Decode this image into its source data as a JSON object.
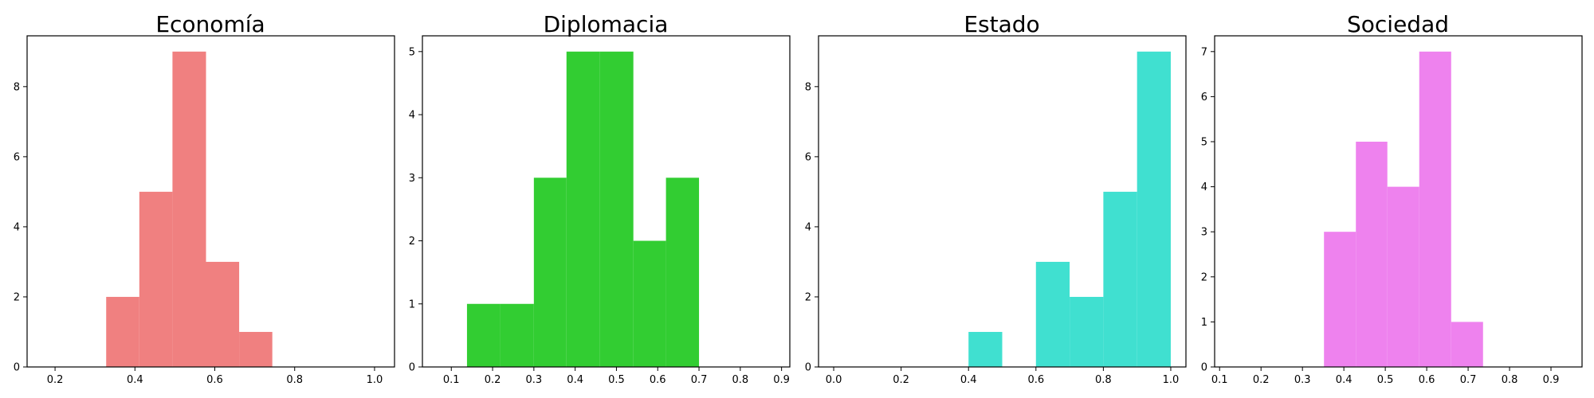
{
  "chart_data": [
    {
      "type": "bar",
      "subtype": "histogram",
      "title": "Economía",
      "color": "#f08080",
      "xlim": [
        0.13,
        1.05
      ],
      "ylim": [
        0,
        9.45
      ],
      "xticks": [
        0.2,
        0.4,
        0.6,
        0.8,
        1.0
      ],
      "xtick_labels": [
        "0.2",
        "0.4",
        "0.6",
        "0.8",
        "1.0"
      ],
      "yticks": [
        0,
        2,
        4,
        6,
        8
      ],
      "ytick_labels": [
        "0",
        "2",
        "4",
        "6",
        "8"
      ],
      "bins": [
        {
          "x0": 0.328,
          "x1": 0.411,
          "count": 2
        },
        {
          "x0": 0.411,
          "x1": 0.494,
          "count": 5
        },
        {
          "x0": 0.494,
          "x1": 0.578,
          "count": 9
        },
        {
          "x0": 0.578,
          "x1": 0.661,
          "count": 3
        },
        {
          "x0": 0.661,
          "x1": 0.744,
          "count": 1
        }
      ]
    },
    {
      "type": "bar",
      "subtype": "histogram",
      "title": "Diplomacia",
      "color": "#32cd32",
      "xlim": [
        0.03,
        0.92
      ],
      "ylim": [
        0,
        5.25
      ],
      "xticks": [
        0.1,
        0.2,
        0.3,
        0.4,
        0.5,
        0.6,
        0.7,
        0.8,
        0.9
      ],
      "xtick_labels": [
        "0.1",
        "0.2",
        "0.3",
        "0.4",
        "0.5",
        "0.6",
        "0.7",
        "0.8",
        "0.9"
      ],
      "yticks": [
        0,
        1,
        2,
        3,
        4,
        5
      ],
      "ytick_labels": [
        "0",
        "1",
        "2",
        "3",
        "4",
        "5"
      ],
      "bins": [
        {
          "x0": 0.138,
          "x1": 0.219,
          "count": 1
        },
        {
          "x0": 0.219,
          "x1": 0.3,
          "count": 1
        },
        {
          "x0": 0.3,
          "x1": 0.379,
          "count": 3
        },
        {
          "x0": 0.379,
          "x1": 0.46,
          "count": 5
        },
        {
          "x0": 0.46,
          "x1": 0.541,
          "count": 5
        },
        {
          "x0": 0.541,
          "x1": 0.62,
          "count": 2
        },
        {
          "x0": 0.62,
          "x1": 0.7,
          "count": 3
        }
      ]
    },
    {
      "type": "bar",
      "subtype": "histogram",
      "title": "Estado",
      "color": "#40e0d0",
      "xlim": [
        -0.045,
        1.045
      ],
      "ylim": [
        0,
        9.45
      ],
      "xticks": [
        0.0,
        0.2,
        0.4,
        0.6,
        0.8,
        1.0
      ],
      "xtick_labels": [
        "0.0",
        "0.2",
        "0.4",
        "0.6",
        "0.8",
        "1.0"
      ],
      "yticks": [
        0,
        2,
        4,
        6,
        8
      ],
      "ytick_labels": [
        "0",
        "2",
        "4",
        "6",
        "8"
      ],
      "bins": [
        {
          "x0": 0.4,
          "x1": 0.5,
          "count": 1
        },
        {
          "x0": 0.6,
          "x1": 0.7,
          "count": 3
        },
        {
          "x0": 0.7,
          "x1": 0.8,
          "count": 2
        },
        {
          "x0": 0.8,
          "x1": 0.9,
          "count": 5
        },
        {
          "x0": 0.9,
          "x1": 1.0,
          "count": 9
        }
      ]
    },
    {
      "type": "bar",
      "subtype": "histogram",
      "title": "Sociedad",
      "color": "#ee82ee",
      "xlim": [
        0.088,
        0.975
      ],
      "ylim": [
        0,
        7.35
      ],
      "xticks": [
        0.1,
        0.2,
        0.3,
        0.4,
        0.5,
        0.6,
        0.7,
        0.8,
        0.9
      ],
      "xtick_labels": [
        "0.1",
        "0.2",
        "0.3",
        "0.4",
        "0.5",
        "0.6",
        "0.7",
        "0.8",
        "0.9"
      ],
      "yticks": [
        0,
        1,
        2,
        3,
        4,
        5,
        6,
        7
      ],
      "ytick_labels": [
        "0",
        "1",
        "2",
        "3",
        "4",
        "5",
        "6",
        "7"
      ],
      "bins": [
        {
          "x0": 0.352,
          "x1": 0.429,
          "count": 3
        },
        {
          "x0": 0.429,
          "x1": 0.505,
          "count": 5
        },
        {
          "x0": 0.505,
          "x1": 0.582,
          "count": 4
        },
        {
          "x0": 0.582,
          "x1": 0.659,
          "count": 7
        },
        {
          "x0": 0.659,
          "x1": 0.736,
          "count": 1
        }
      ]
    }
  ]
}
